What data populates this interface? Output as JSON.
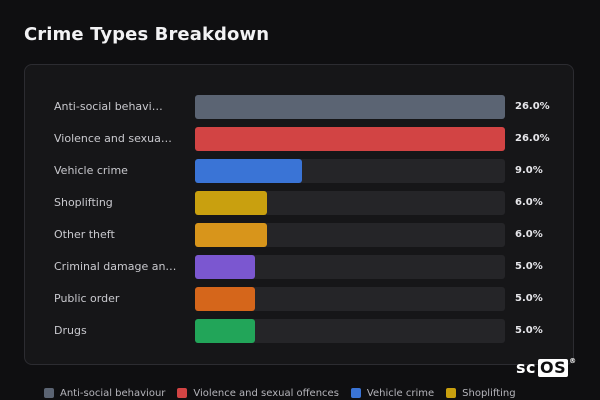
{
  "title": "Crime Types Breakdown",
  "chart_data": {
    "type": "bar",
    "orientation": "horizontal",
    "title": "Crime Types Breakdown",
    "xlim": [
      0,
      26
    ],
    "categories": [
      "Anti-social behavi…",
      "Violence and sexua…",
      "Vehicle crime",
      "Shoplifting",
      "Other theft",
      "Criminal damage an…",
      "Public order",
      "Drugs"
    ],
    "values": [
      26.0,
      26.0,
      9.0,
      6.0,
      6.0,
      5.0,
      5.0,
      5.0
    ],
    "value_labels": [
      "26.0%",
      "26.0%",
      "9.0%",
      "6.0%",
      "6.0%",
      "5.0%",
      "5.0%",
      "5.0%"
    ],
    "colors": [
      "#5b6473",
      "#d24444",
      "#3a74d6",
      "#c9a00f",
      "#d8951b",
      "#7b57d0",
      "#d5661b",
      "#22a559"
    ],
    "track_color": "#252528",
    "legend": {
      "placement": "bottom",
      "entries": [
        {
          "label": "Anti-social behaviour",
          "color": "#5b6473"
        },
        {
          "label": "Violence and sexual offences",
          "color": "#d24444"
        },
        {
          "label": "Vehicle crime",
          "color": "#3a74d6"
        },
        {
          "label": "Shoplifting",
          "color": "#c9a00f"
        }
      ]
    }
  },
  "watermark": {
    "sc": "sc",
    "os": "OS",
    "reg": "®"
  }
}
